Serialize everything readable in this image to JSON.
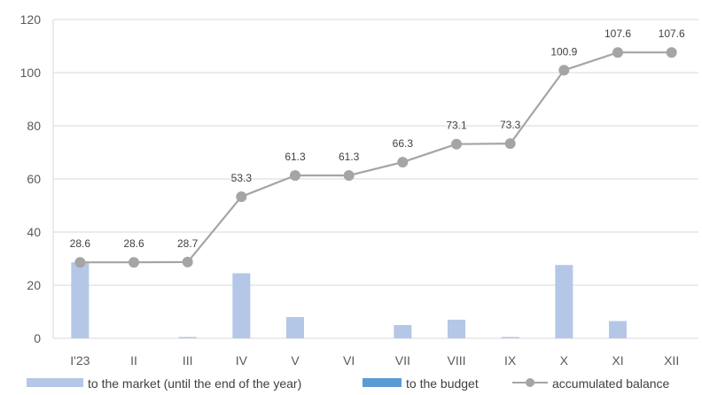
{
  "chart_data": {
    "type": "bar",
    "categories": [
      "I'23",
      "II",
      "III",
      "IV",
      "V",
      "VI",
      "VII",
      "VIII",
      "IX",
      "X",
      "XI",
      "XII"
    ],
    "series": [
      {
        "name": "to the market (until the end of the year)",
        "type": "bar",
        "color": "#b4c7e7",
        "values": [
          28.6,
          0,
          0.5,
          24.5,
          8,
          0,
          5,
          7,
          0.5,
          27.6,
          6.5,
          0
        ]
      },
      {
        "name": "to the budget",
        "type": "bar",
        "color": "#5b9bd5",
        "values": [
          0,
          0,
          0,
          0,
          0,
          0,
          0,
          0,
          0,
          0,
          0,
          0
        ]
      },
      {
        "name": "accumulated balance",
        "type": "line",
        "color": "#a5a5a5",
        "values": [
          28.6,
          28.6,
          28.7,
          53.3,
          61.3,
          61.3,
          66.3,
          73.1,
          73.3,
          100.9,
          107.6,
          107.6
        ],
        "labels": [
          "28.6",
          "28.6",
          "28.7",
          "53.3",
          "61.3",
          "61.3",
          "66.3",
          "73.1",
          "73.3",
          "100.9",
          "107.6",
          "107.6"
        ]
      }
    ],
    "yticks": [
      "0",
      "20",
      "40",
      "60",
      "80",
      "100",
      "120"
    ],
    "ylim": [
      0,
      120
    ],
    "grid": true,
    "legend": "bottom"
  }
}
